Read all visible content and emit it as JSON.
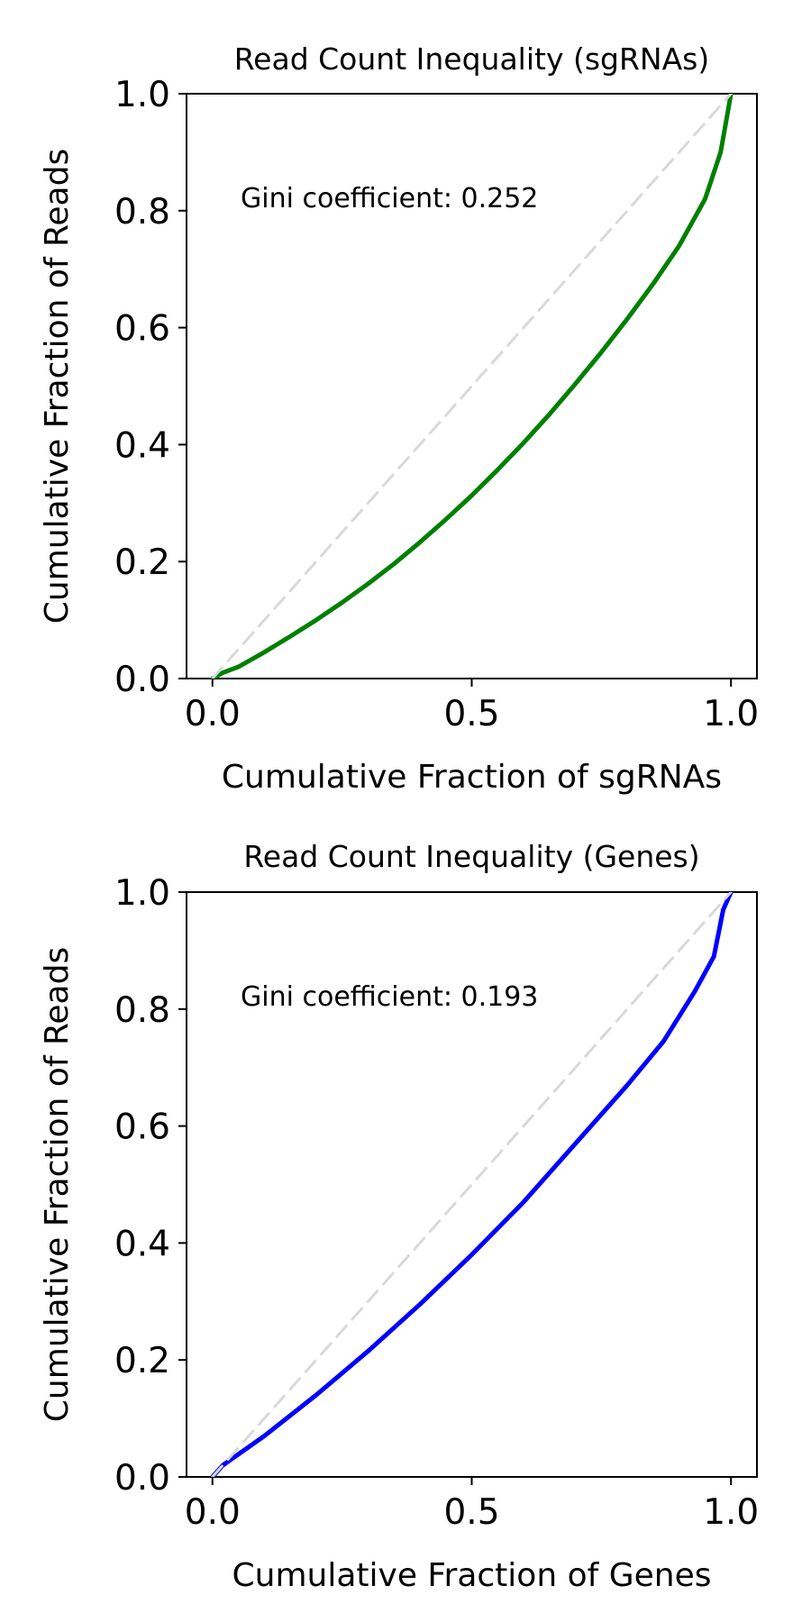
{
  "chart_data": [
    {
      "type": "line",
      "title": "Read Count Inequality (sgRNAs)",
      "xlabel": "Cumulative Fraction of sgRNAs",
      "ylabel": "Cumulative Fraction of Reads",
      "xlim": [
        -0.05,
        1.05
      ],
      "ylim": [
        0,
        1
      ],
      "x_ticks": [
        "0.0",
        "0.5",
        "1.0"
      ],
      "y_ticks": [
        "0.0",
        "0.2",
        "0.4",
        "0.6",
        "0.8",
        "1.0"
      ],
      "annotation": "Gini coefficient: 0.252",
      "grid": false,
      "series": [
        {
          "role": "lorenz-curve",
          "color": "#008000",
          "x": [
            0.0,
            0.02,
            0.05,
            0.1,
            0.15,
            0.2,
            0.25,
            0.3,
            0.35,
            0.4,
            0.45,
            0.5,
            0.55,
            0.6,
            0.65,
            0.7,
            0.75,
            0.8,
            0.85,
            0.9,
            0.95,
            0.98,
            1.0
          ],
          "y": [
            0.0,
            0.01,
            0.02,
            0.045,
            0.072,
            0.1,
            0.13,
            0.162,
            0.196,
            0.233,
            0.272,
            0.313,
            0.357,
            0.403,
            0.452,
            0.504,
            0.558,
            0.615,
            0.675,
            0.74,
            0.82,
            0.9,
            1.0
          ]
        },
        {
          "role": "equality-line",
          "color": "#d9d9d9",
          "x": [
            0.0,
            1.0
          ],
          "y": [
            0.0,
            1.0
          ]
        }
      ]
    },
    {
      "type": "line",
      "title": "Read Count Inequality (Genes)",
      "xlabel": "Cumulative Fraction of Genes",
      "ylabel": "Cumulative Fraction of Reads",
      "xlim": [
        -0.05,
        1.05
      ],
      "ylim": [
        0,
        1
      ],
      "x_ticks": [
        "0.0",
        "0.5",
        "1.0"
      ],
      "y_ticks": [
        "0.0",
        "0.2",
        "0.4",
        "0.6",
        "0.8",
        "1.0"
      ],
      "annotation": "Gini coefficient: 0.193",
      "grid": false,
      "series": [
        {
          "role": "lorenz-curve",
          "color": "#0000ff",
          "x": [
            0.0,
            0.02,
            0.1,
            0.2,
            0.3,
            0.4,
            0.5,
            0.6,
            0.7,
            0.8,
            0.87,
            0.93,
            0.967,
            0.985,
            1.0
          ],
          "y": [
            0.0,
            0.02,
            0.07,
            0.14,
            0.215,
            0.295,
            0.38,
            0.47,
            0.57,
            0.67,
            0.745,
            0.83,
            0.89,
            0.97,
            1.0
          ]
        },
        {
          "role": "equality-line",
          "color": "#d9d9d9",
          "x": [
            0.0,
            1.0
          ],
          "y": [
            0.0,
            1.0
          ]
        }
      ]
    }
  ]
}
